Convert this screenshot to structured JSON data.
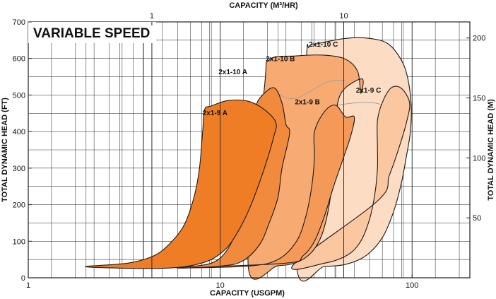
{
  "chart_data": {
    "type": "area",
    "title": "VARIABLE SPEED",
    "xlabel": "CAPACITY (USGPM)",
    "x2label": "CAPACITY (M³/HR)",
    "ylabel": "TOTAL DYNAMIC HEAD (FT)",
    "y2label": "TOTAL DYNAMIC HEAD (M)",
    "x_scale": "log",
    "xlim": [
      1,
      200
    ],
    "ylim": [
      0,
      700
    ],
    "x2_scale": "log",
    "x2lim": [
      0.227,
      45.4
    ],
    "y2lim": [
      0,
      213.4
    ],
    "grid": true,
    "x_ticks": [
      {
        "v": 1,
        "label": "1"
      },
      {
        "v": 10,
        "label": "10"
      },
      {
        "v": 100,
        "label": "100"
      }
    ],
    "y_ticks": [
      0,
      100,
      200,
      300,
      400,
      500,
      600,
      700
    ],
    "x2_ticks": [
      {
        "v": 1,
        "label": "1"
      },
      {
        "v": 10,
        "label": "10"
      }
    ],
    "y2_ticks": [
      50,
      100,
      150,
      200
    ],
    "colors": {
      "grid": "#444444",
      "outline": "#1a1a1a",
      "inner_line": "#9a9a9a",
      "banner_bg": "#ffffff"
    },
    "series": [
      {
        "name": "2x1-10 C",
        "color": "#fcdcc2",
        "points": [
          [
            25,
            32
          ],
          [
            35,
            31
          ],
          [
            46,
            38
          ],
          [
            58,
            62
          ],
          [
            70,
            110
          ],
          [
            80,
            180
          ],
          [
            88,
            260
          ],
          [
            94,
            340
          ],
          [
            98,
            400
          ],
          [
            99,
            470
          ],
          [
            95,
            545
          ],
          [
            88,
            595
          ],
          [
            75,
            640
          ],
          [
            60,
            655
          ],
          [
            45,
            655
          ],
          [
            32,
            640
          ],
          [
            29,
            631
          ],
          [
            28,
            580
          ]
        ],
        "inner_points": [
          [
            29,
            460
          ],
          [
            60,
            480
          ],
          [
            92,
            445
          ]
        ]
      },
      {
        "name": "2x1-9 C",
        "color": "#fac7a0",
        "points": [
          [
            24,
            35
          ],
          [
            35,
            40
          ],
          [
            46,
            62
          ],
          [
            54,
            100
          ],
          [
            60,
            160
          ],
          [
            64,
            230
          ],
          [
            66,
            300
          ],
          [
            66,
            360
          ],
          [
            66,
            430
          ],
          [
            70,
            480
          ],
          [
            78,
            520
          ],
          [
            88,
            518
          ],
          [
            97,
            480
          ],
          [
            94,
            430
          ],
          [
            86,
            360
          ],
          [
            76,
            280
          ],
          [
            66,
            210
          ]
        ]
      },
      {
        "name": "2x1-10 B",
        "color": "#f7ab72",
        "points": [
          [
            14,
            32
          ],
          [
            20,
            33
          ],
          [
            25,
            42
          ],
          [
            30,
            70
          ],
          [
            34,
            120
          ],
          [
            37,
            200
          ],
          [
            39,
            300
          ],
          [
            40,
            400
          ],
          [
            41,
            480
          ],
          [
            45,
            520
          ],
          [
            55,
            544
          ],
          [
            54,
            505
          ],
          [
            52,
            565
          ],
          [
            45,
            598
          ],
          [
            35,
            609
          ],
          [
            25,
            607
          ],
          [
            18,
            596
          ],
          [
            17,
            520
          ]
        ],
        "inner_points": [
          [
            18,
            520
          ],
          [
            24,
            490
          ],
          [
            36,
            535
          ],
          [
            45,
            540
          ]
        ]
      },
      {
        "name": "2x1-9 B",
        "color": "#f49958",
        "points": [
          [
            6,
            27
          ],
          [
            14,
            32
          ],
          [
            20,
            50
          ],
          [
            25,
            100
          ],
          [
            28,
            170
          ],
          [
            30,
            250
          ],
          [
            31,
            330
          ],
          [
            31,
            400
          ],
          [
            35,
            455
          ],
          [
            40,
            472
          ],
          [
            45,
            440
          ],
          [
            50,
            440
          ],
          [
            48,
            390
          ],
          [
            44,
            330
          ],
          [
            39,
            250
          ],
          [
            35,
            170
          ],
          [
            31,
            100
          ],
          [
            27,
            60
          ],
          [
            22,
            40
          ]
        ]
      },
      {
        "name": "2x1-10 A",
        "color": "#f18a3d",
        "points": [
          [
            6,
            27
          ],
          [
            9,
            40
          ],
          [
            11,
            80
          ],
          [
            12.5,
            150
          ],
          [
            13.5,
            230
          ],
          [
            14,
            320
          ],
          [
            14,
            400
          ],
          [
            15,
            450
          ],
          [
            16,
            490
          ],
          [
            19,
            520
          ],
          [
            21,
            478
          ],
          [
            22,
            420
          ],
          [
            23,
            395
          ],
          [
            21,
            300
          ],
          [
            20,
            220
          ],
          [
            18,
            150
          ],
          [
            16,
            90
          ],
          [
            13,
            45
          ],
          [
            10,
            32
          ]
        ]
      },
      {
        "name": "2x1-9 A",
        "color": "#ef7d26",
        "points": [
          [
            2,
            30
          ],
          [
            3.3,
            40
          ],
          [
            4.5,
            60
          ],
          [
            5.5,
            95
          ],
          [
            6.5,
            145
          ],
          [
            7.3,
            220
          ],
          [
            7.8,
            300
          ],
          [
            8.1,
            400
          ],
          [
            8.3,
            460
          ],
          [
            9,
            470
          ],
          [
            11,
            485
          ],
          [
            14,
            483
          ],
          [
            17,
            460
          ],
          [
            19.5,
            425
          ],
          [
            19,
            385
          ],
          [
            17,
            300
          ],
          [
            14.5,
            200
          ],
          [
            12.5,
            130
          ],
          [
            10.5,
            75
          ],
          [
            8,
            40
          ],
          [
            5,
            26
          ]
        ]
      }
    ],
    "region_labels": [
      {
        "text": "2x1-10 C",
        "x": 29,
        "y": 632
      },
      {
        "text": "2x1-10 B",
        "x": 17.3,
        "y": 593
      },
      {
        "text": "2x1-10 A",
        "x": 9.8,
        "y": 557
      },
      {
        "text": "2x1-9 C",
        "x": 51,
        "y": 507
      },
      {
        "text": "2x1-9 B",
        "x": 24.5,
        "y": 475
      },
      {
        "text": "2x1-9 A",
        "x": 8.1,
        "y": 445
      }
    ]
  }
}
